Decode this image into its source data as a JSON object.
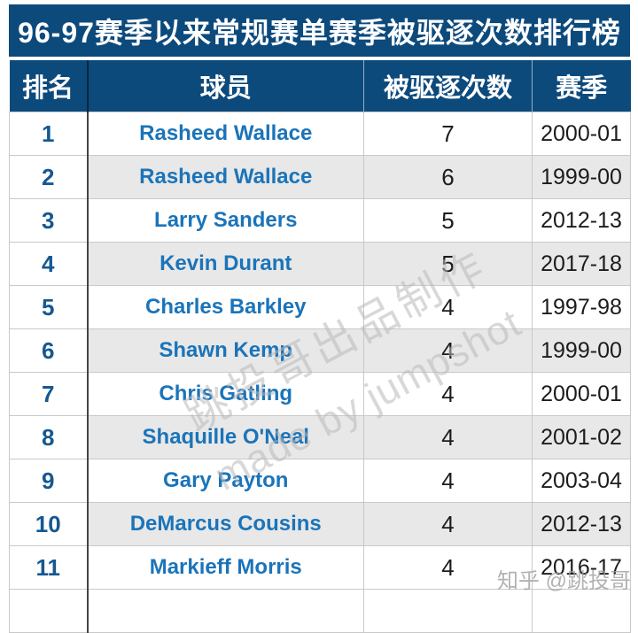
{
  "title": "96-97赛季以来常规赛单赛季被驱逐次数排行榜",
  "colors": {
    "header_navy": "#0d4a7c",
    "rank_blue": "#155892",
    "player_blue": "#1b74b9",
    "alt_row_gray": "#e8e8e8",
    "body_text": "#1c1c1c",
    "watermark_gray": "#b9b9b9"
  },
  "table": {
    "headers": {
      "rank": "排名",
      "player": "球员",
      "ejections": "被驱逐次数",
      "season": "赛季"
    },
    "rows": [
      {
        "rank": "1",
        "player": "Rasheed Wallace",
        "ejections": "7",
        "season": "2000-01"
      },
      {
        "rank": "2",
        "player": "Rasheed Wallace",
        "ejections": "6",
        "season": "1999-00"
      },
      {
        "rank": "3",
        "player": "Larry Sanders",
        "ejections": "5",
        "season": "2012-13"
      },
      {
        "rank": "4",
        "player": "Kevin Durant",
        "ejections": "5",
        "season": "2017-18"
      },
      {
        "rank": "5",
        "player": "Charles Barkley",
        "ejections": "4",
        "season": "1997-98"
      },
      {
        "rank": "6",
        "player": "Shawn Kemp",
        "ejections": "4",
        "season": "1999-00"
      },
      {
        "rank": "7",
        "player": "Chris Gatling",
        "ejections": "4",
        "season": "2000-01"
      },
      {
        "rank": "8",
        "player": "Shaquille O'Neal",
        "ejections": "4",
        "season": "2001-02"
      },
      {
        "rank": "9",
        "player": "Gary Payton",
        "ejections": "4",
        "season": "2003-04"
      },
      {
        "rank": "10",
        "player": "DeMarcus Cousins",
        "ejections": "4",
        "season": "2012-13"
      },
      {
        "rank": "11",
        "player": "Markieff Morris",
        "ejections": "4",
        "season": "2016-17"
      }
    ]
  },
  "watermarks": {
    "diagonal_line1": "跳投哥出品制作",
    "diagonal_line2": "made by jumpshot",
    "corner": "知乎 @跳投哥"
  },
  "chart_data": {
    "type": "table",
    "title": "96-97赛季以来常规赛单赛季被驱逐次数排行榜",
    "columns": [
      "排名",
      "球员",
      "被驱逐次数",
      "赛季"
    ],
    "rows": [
      [
        "1",
        "Rasheed Wallace",
        "7",
        "2000-01"
      ],
      [
        "2",
        "Rasheed Wallace",
        "6",
        "1999-00"
      ],
      [
        "3",
        "Larry Sanders",
        "5",
        "2012-13"
      ],
      [
        "4",
        "Kevin Durant",
        "5",
        "2017-18"
      ],
      [
        "5",
        "Charles Barkley",
        "4",
        "1997-98"
      ],
      [
        "6",
        "Shawn Kemp",
        "4",
        "1999-00"
      ],
      [
        "7",
        "Chris Gatling",
        "4",
        "2000-01"
      ],
      [
        "8",
        "Shaquille O'Neal",
        "4",
        "2001-02"
      ],
      [
        "9",
        "Gary Payton",
        "4",
        "2003-04"
      ],
      [
        "10",
        "DeMarcus Cousins",
        "4",
        "2012-13"
      ],
      [
        "11",
        "Markieff Morris",
        "4",
        "2016-17"
      ]
    ]
  }
}
